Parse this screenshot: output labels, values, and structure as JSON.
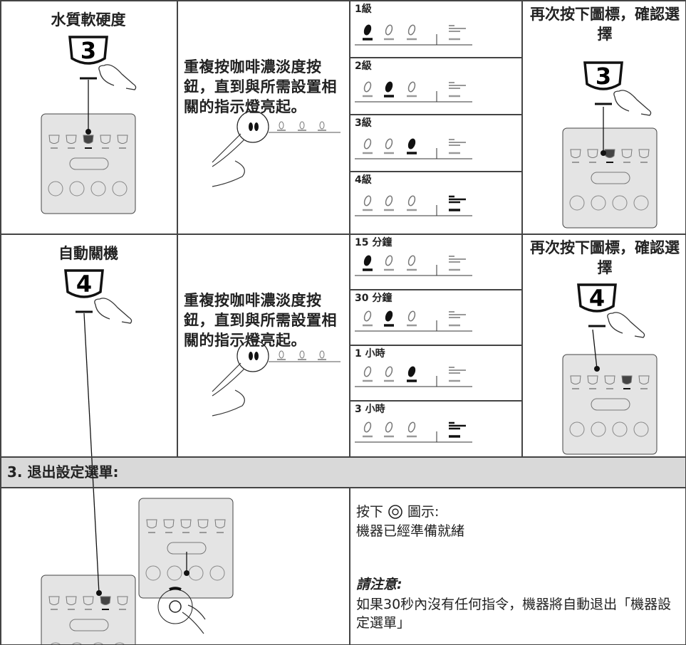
{
  "rows": [
    {
      "title": "水質軟硬度",
      "number": "3",
      "instruction": "重複按咖啡濃淡度按鈕，直到與所需設置相關的指示燈亮起。",
      "options": [
        "1級",
        "2級",
        "3級",
        "4級"
      ],
      "confirm": "再次按下圖標，確認選擇"
    },
    {
      "title": "自動關機",
      "number": "4",
      "instruction": "重複按咖啡濃淡度按鈕，直到與所需設置相關的指示燈亮起。",
      "options": [
        "15 分鐘",
        "30 分鐘",
        "1 小時",
        "3 小時"
      ],
      "confirm": "再次按下圖標，確認選擇"
    }
  ],
  "exit": {
    "heading": "3. 退出設定選單:",
    "press_before": "按下",
    "press_after": "圖示:",
    "ready": "機器已經準備就緒",
    "note_title": "請注意:",
    "note": "如果30秒內沒有任何指令，機器將自動退出「機器設定選單」"
  }
}
